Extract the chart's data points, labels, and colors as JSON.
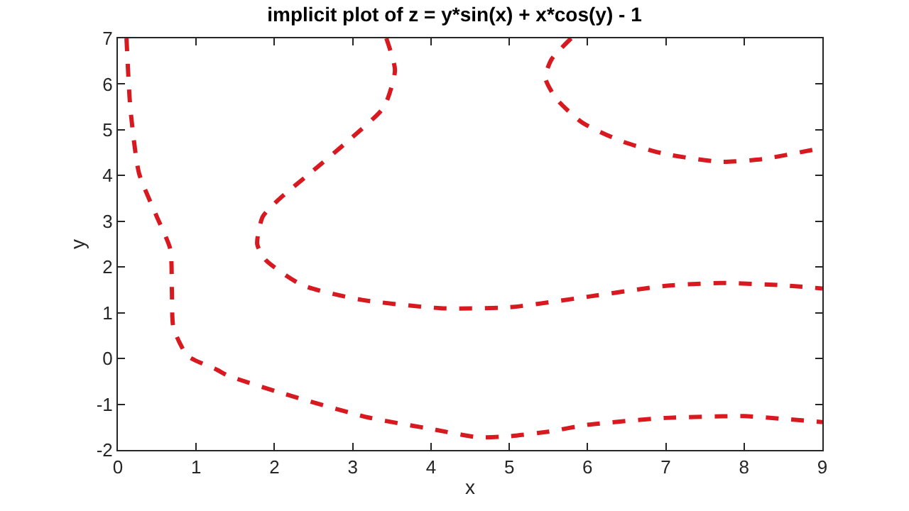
{
  "chart_data": {
    "type": "line",
    "title": "implicit plot of z = y*sin(x) + x*cos(y) - 1",
    "xlabel": "x",
    "ylabel": "y",
    "xlim": [
      0,
      9
    ],
    "ylim": [
      -2,
      7
    ],
    "xticks": [
      0,
      1,
      2,
      3,
      4,
      5,
      6,
      7,
      8,
      9
    ],
    "yticks": [
      -2,
      -1,
      0,
      1,
      2,
      3,
      4,
      5,
      6,
      7
    ],
    "marker": "none",
    "line_style": "dashed",
    "series": [
      {
        "color": "#d81920",
        "x": [
          0.11,
          0.16,
          0.27,
          0.49,
          0.67,
          0.69,
          0.71,
          0.89,
          1.27,
          1.4,
          2.12,
          3.2,
          4.0,
          4.6,
          5.0,
          5.5,
          6.0,
          7.0,
          8.0,
          8.5,
          9.0
        ],
        "values": [
          7,
          5.46,
          4.05,
          3.13,
          2.39,
          1.47,
          0.67,
          0.06,
          -0.25,
          -0.37,
          -0.77,
          -1.29,
          -1.54,
          -1.72,
          -1.7,
          -1.6,
          -1.45,
          -1.3,
          -1.26,
          -1.32,
          -1.39
        ]
      },
      {
        "color": "#d81920",
        "x": [
          3.43,
          3.54,
          3.4,
          2.97,
          2.49,
          2.07,
          1.85,
          1.78,
          1.89,
          2.36,
          3.09,
          4.12,
          5.0,
          6.0,
          7.0,
          7.7,
          8.5,
          9.0
        ],
        "values": [
          7,
          6.3,
          5.5,
          4.8,
          4.1,
          3.5,
          3.1,
          2.5,
          2.15,
          1.6,
          1.29,
          1.1,
          1.12,
          1.35,
          1.59,
          1.65,
          1.6,
          1.53
        ]
      },
      {
        "color": "#d81920",
        "x": [
          5.79,
          5.54,
          5.46,
          5.6,
          5.93,
          6.42,
          6.97,
          7.7,
          8.24,
          8.9,
          9.0
        ],
        "values": [
          7,
          6.54,
          6.14,
          5.68,
          5.16,
          4.76,
          4.48,
          4.3,
          4.36,
          4.57,
          4.6
        ]
      }
    ]
  }
}
